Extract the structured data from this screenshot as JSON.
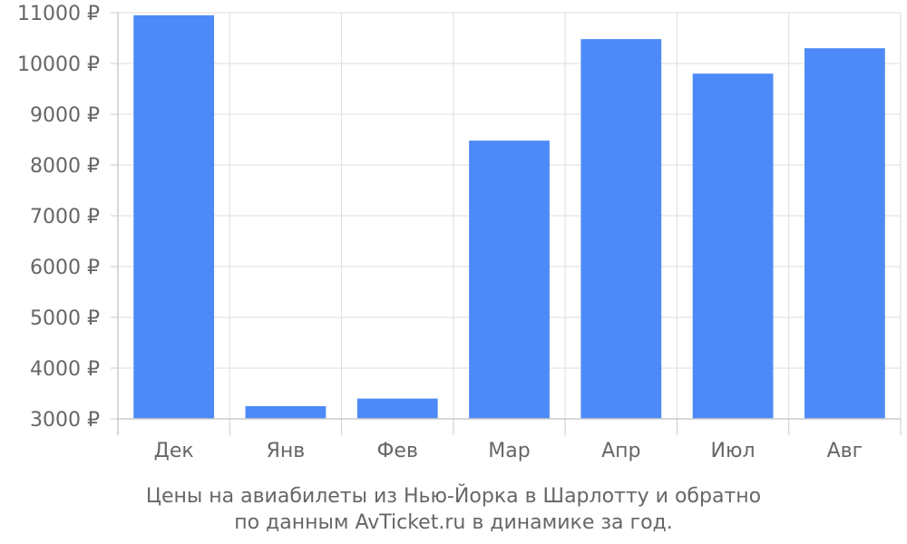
{
  "chart_data": {
    "type": "bar",
    "categories": [
      "Дек",
      "Янв",
      "Фев",
      "Мар",
      "Апр",
      "Июл",
      "Авг"
    ],
    "values": [
      10950,
      3250,
      3400,
      8480,
      10480,
      9800,
      10300
    ],
    "y_tick_labels": [
      "3000 ₽",
      "4000 ₽",
      "5000 ₽",
      "6000 ₽",
      "7000 ₽",
      "8000 ₽",
      "9000 ₽",
      "10000 ₽",
      "11000 ₽"
    ],
    "ylim": [
      3000,
      11000
    ],
    "grid": true,
    "bar_color": "#4d8af7",
    "title_line1": "Цены на авиабилеты из Нью-Йорка в Шарлотту и обратно",
    "title_line2": "по данным AvTicket.ru в динамике за год."
  }
}
